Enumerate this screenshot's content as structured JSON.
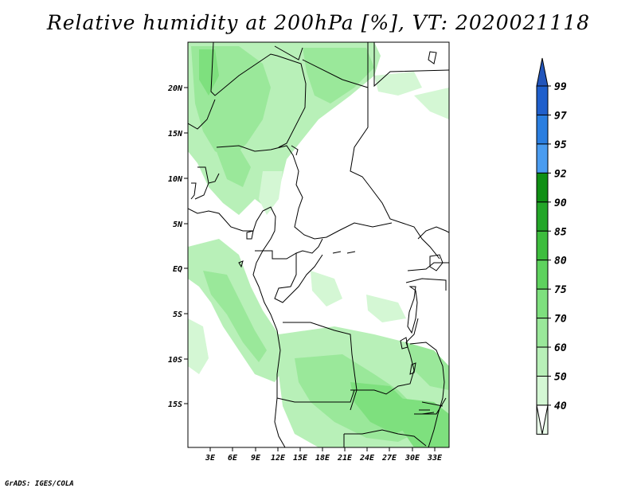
{
  "title": "Relative humidity at 200hPa [%], VT: 2020021118",
  "footer": "GrADS: IGES/COLA",
  "map": {
    "lat_labels": [
      "20N",
      "15N",
      "10N",
      "5N",
      "EQ",
      "5S",
      "10S",
      "15S"
    ],
    "lon_labels": [
      "3E",
      "6E",
      "9E",
      "12E",
      "15E",
      "18E",
      "21E",
      "24E",
      "27E",
      "30E",
      "33E"
    ]
  },
  "colorbar": {
    "levels": [
      "99",
      "97",
      "95",
      "92",
      "90",
      "85",
      "80",
      "75",
      "70",
      "60",
      "50",
      "40"
    ],
    "colors": [
      "#1f5fcc",
      "#2a7ee0",
      "#4a9cf0",
      "#0f8f14",
      "#23a628",
      "#3dbd3d",
      "#5ed25e",
      "#7ee07e",
      "#9ae89a",
      "#b8f0b8",
      "#d4f7d4",
      "#eafcea"
    ],
    "top_arrow_color": "#2255bb",
    "bottom_arrow_color": "#ffffff"
  }
}
